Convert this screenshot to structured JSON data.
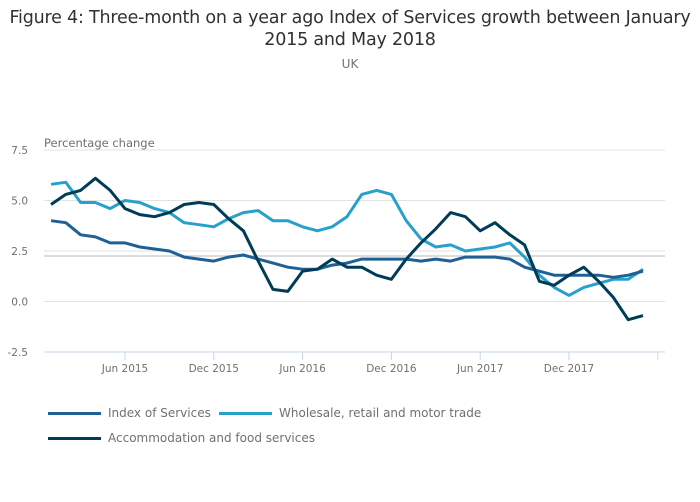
{
  "chart_data": {
    "type": "line",
    "title": "Figure 4: Three-month on a year ago Index of Services growth between January 2015 and May 2018",
    "subtitle": "UK",
    "ylabel": "Percentage change",
    "xlabel": "",
    "ylim": [
      -2.5,
      7.5
    ],
    "yticks": [
      "7.5",
      "5.0",
      "2.5",
      "0.0",
      "-2.5"
    ],
    "ytick_values": [
      7.5,
      5.0,
      2.5,
      0.0,
      -2.5
    ],
    "x_start": "Jan 2015",
    "x_end": "May 2018",
    "x_range_months": [
      0,
      41
    ],
    "xticks": [
      {
        "label": "Jun 2015",
        "month": 5
      },
      {
        "label": "Dec 2015",
        "month": 11
      },
      {
        "label": "Jun 2016",
        "month": 17
      },
      {
        "label": "Dec 2016",
        "month": 23
      },
      {
        "label": "Jun 2017",
        "month": 29
      },
      {
        "label": "Dec 2017",
        "month": 35
      },
      {
        "label": "",
        "month": 41
      }
    ],
    "grid": true,
    "reference_line": 2.25,
    "legend_position": "bottom-left",
    "series": [
      {
        "name": "Index of Services",
        "color": "#206095",
        "values": [
          4.0,
          3.9,
          3.3,
          3.2,
          2.9,
          2.9,
          2.7,
          2.6,
          2.5,
          2.2,
          2.1,
          2.0,
          2.2,
          2.3,
          2.1,
          1.9,
          1.7,
          1.6,
          1.6,
          1.8,
          1.9,
          2.1,
          2.1,
          2.1,
          2.1,
          2.0,
          2.1,
          2.0,
          2.2,
          2.2,
          2.2,
          2.1,
          1.7,
          1.5,
          1.3,
          1.3,
          1.3,
          1.3,
          1.2,
          1.3,
          1.5
        ]
      },
      {
        "name": "Wholesale, retail and motor trade",
        "color": "#27a0cc",
        "values": [
          5.8,
          5.9,
          4.9,
          4.9,
          4.6,
          5.0,
          4.9,
          4.6,
          4.4,
          3.9,
          3.8,
          3.7,
          4.1,
          4.4,
          4.5,
          4.0,
          4.0,
          3.7,
          3.5,
          3.7,
          4.2,
          5.3,
          5.5,
          5.3,
          4.0,
          3.1,
          2.7,
          2.8,
          2.5,
          2.6,
          2.7,
          2.9,
          2.2,
          1.3,
          0.7,
          0.3,
          0.7,
          0.9,
          1.1,
          1.1,
          1.6
        ]
      },
      {
        "name": "Accommodation and food services",
        "color": "#003c57",
        "values": [
          4.8,
          5.3,
          5.5,
          6.1,
          5.5,
          4.6,
          4.3,
          4.2,
          4.4,
          4.8,
          4.9,
          4.8,
          4.1,
          3.5,
          2.0,
          0.6,
          0.5,
          1.5,
          1.6,
          2.1,
          1.7,
          1.7,
          1.3,
          1.1,
          2.1,
          2.9,
          3.6,
          4.4,
          4.2,
          3.5,
          3.9,
          3.3,
          2.8,
          1.0,
          0.8,
          1.3,
          1.7,
          1.0,
          0.2,
          -0.9,
          -0.7
        ]
      }
    ]
  }
}
